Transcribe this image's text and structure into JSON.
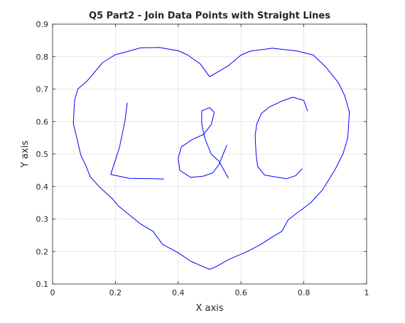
{
  "chart_data": {
    "type": "line",
    "title": "Q5 Part2 - Join Data Points with Straight Lines",
    "xlabel": "X axis",
    "ylabel": "Y axis",
    "xlim": [
      0,
      1
    ],
    "ylim": [
      0.1,
      0.9
    ],
    "xticks": [
      0,
      0.2,
      0.4,
      0.6,
      0.8,
      1
    ],
    "xtick_labels": [
      "0",
      "0.2",
      "0.4",
      "0.6",
      "0.8",
      "1"
    ],
    "yticks": [
      0.1,
      0.2,
      0.3,
      0.4,
      0.5,
      0.6,
      0.7,
      0.8,
      0.9
    ],
    "ytick_labels": [
      "0.1",
      "0.2",
      "0.3",
      "0.4",
      "0.5",
      "0.6",
      "0.7",
      "0.8",
      "0.9"
    ],
    "grid": true,
    "line_color": "#0000ff",
    "series": [
      {
        "points": [
          [
            0.5,
            0.738
          ],
          [
            0.47,
            0.778
          ],
          [
            0.43,
            0.805
          ],
          [
            0.4,
            0.818
          ],
          [
            0.34,
            0.828
          ],
          [
            0.28,
            0.827
          ],
          [
            0.24,
            0.816
          ],
          [
            0.2,
            0.806
          ],
          [
            0.16,
            0.782
          ],
          [
            0.11,
            0.725
          ],
          [
            0.08,
            0.7
          ],
          [
            0.07,
            0.665
          ],
          [
            0.066,
            0.594
          ],
          [
            0.075,
            0.558
          ],
          [
            0.09,
            0.496
          ],
          [
            0.105,
            0.467
          ],
          [
            0.12,
            0.43
          ],
          [
            0.15,
            0.398
          ],
          [
            0.19,
            0.363
          ],
          [
            0.21,
            0.34
          ],
          [
            0.25,
            0.308
          ],
          [
            0.28,
            0.285
          ],
          [
            0.32,
            0.262
          ],
          [
            0.35,
            0.222
          ],
          [
            0.4,
            0.196
          ],
          [
            0.44,
            0.17
          ],
          [
            0.48,
            0.153
          ],
          [
            0.5,
            0.145
          ],
          [
            0.52,
            0.153
          ],
          [
            0.56,
            0.175
          ],
          [
            0.62,
            0.2
          ],
          [
            0.66,
            0.22
          ],
          [
            0.7,
            0.245
          ],
          [
            0.73,
            0.262
          ],
          [
            0.75,
            0.297
          ],
          [
            0.78,
            0.32
          ],
          [
            0.82,
            0.348
          ],
          [
            0.86,
            0.39
          ],
          [
            0.9,
            0.453
          ],
          [
            0.925,
            0.502
          ],
          [
            0.94,
            0.55
          ],
          [
            0.945,
            0.63
          ],
          [
            0.93,
            0.68
          ],
          [
            0.91,
            0.72
          ],
          [
            0.87,
            0.768
          ],
          [
            0.83,
            0.805
          ],
          [
            0.78,
            0.817
          ],
          [
            0.7,
            0.826
          ],
          [
            0.63,
            0.817
          ],
          [
            0.6,
            0.805
          ],
          [
            0.56,
            0.772
          ],
          [
            0.5,
            0.738
          ]
        ]
      },
      {
        "points": [
          [
            0.238,
            0.658
          ],
          [
            0.23,
            0.6
          ],
          [
            0.213,
            0.52
          ],
          [
            0.185,
            0.437
          ],
          [
            0.245,
            0.425
          ],
          [
            0.32,
            0.424
          ],
          [
            0.355,
            0.423
          ]
        ]
      },
      {
        "points": [
          [
            0.56,
            0.425
          ],
          [
            0.53,
            0.478
          ],
          [
            0.505,
            0.5
          ],
          [
            0.485,
            0.548
          ],
          [
            0.475,
            0.593
          ],
          [
            0.475,
            0.633
          ],
          [
            0.5,
            0.643
          ],
          [
            0.515,
            0.628
          ],
          [
            0.505,
            0.59
          ],
          [
            0.48,
            0.56
          ],
          [
            0.445,
            0.545
          ],
          [
            0.41,
            0.522
          ],
          [
            0.4,
            0.487
          ],
          [
            0.405,
            0.45
          ],
          [
            0.44,
            0.428
          ],
          [
            0.48,
            0.432
          ],
          [
            0.51,
            0.442
          ],
          [
            0.53,
            0.468
          ],
          [
            0.555,
            0.528
          ]
        ]
      },
      {
        "points": [
          [
            0.812,
            0.632
          ],
          [
            0.8,
            0.665
          ],
          [
            0.765,
            0.675
          ],
          [
            0.73,
            0.663
          ],
          [
            0.69,
            0.645
          ],
          [
            0.665,
            0.625
          ],
          [
            0.65,
            0.592
          ],
          [
            0.645,
            0.557
          ],
          [
            0.648,
            0.5
          ],
          [
            0.653,
            0.462
          ],
          [
            0.675,
            0.435
          ],
          [
            0.745,
            0.424
          ],
          [
            0.775,
            0.434
          ],
          [
            0.795,
            0.455
          ]
        ]
      }
    ]
  }
}
